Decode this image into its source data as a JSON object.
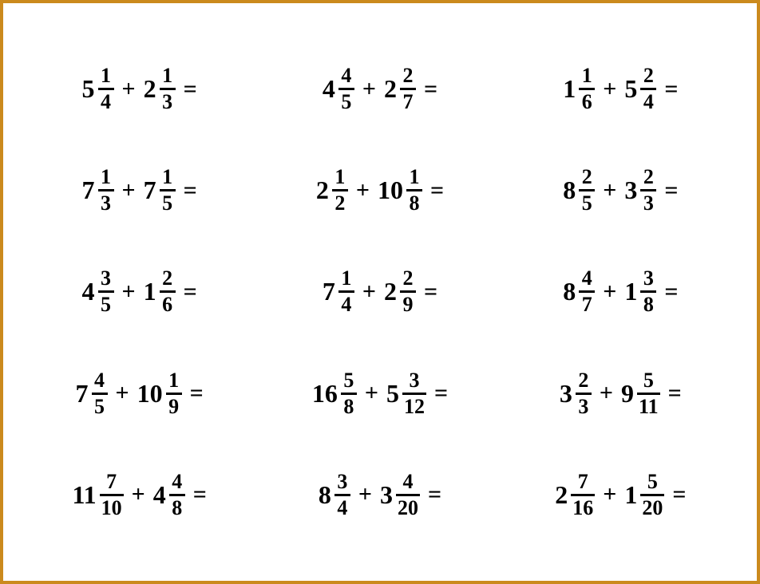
{
  "border_color": "#cb8a1d",
  "background_color": "#ffffff",
  "text_color": "#000000",
  "font_family": "Georgia, Times New Roman, serif",
  "whole_fontsize": 32,
  "frac_fontsize": 26,
  "op_fontsize": 30,
  "grid": {
    "rows": 5,
    "cols": 3
  },
  "operator": "+",
  "equals": "=",
  "problems": [
    {
      "a": {
        "whole": "5",
        "num": "1",
        "den": "4"
      },
      "b": {
        "whole": "2",
        "num": "1",
        "den": "3"
      }
    },
    {
      "a": {
        "whole": "4",
        "num": "4",
        "den": "5"
      },
      "b": {
        "whole": "2",
        "num": "2",
        "den": "7"
      }
    },
    {
      "a": {
        "whole": "1",
        "num": "1",
        "den": "6"
      },
      "b": {
        "whole": "5",
        "num": "2",
        "den": "4"
      }
    },
    {
      "a": {
        "whole": "7",
        "num": "1",
        "den": "3"
      },
      "b": {
        "whole": "7",
        "num": "1",
        "den": "5"
      }
    },
    {
      "a": {
        "whole": "2",
        "num": "1",
        "den": "2"
      },
      "b": {
        "whole": "10",
        "num": "1",
        "den": "8"
      }
    },
    {
      "a": {
        "whole": "8",
        "num": "2",
        "den": "5"
      },
      "b": {
        "whole": "3",
        "num": "2",
        "den": "3"
      }
    },
    {
      "a": {
        "whole": "4",
        "num": "3",
        "den": "5"
      },
      "b": {
        "whole": "1",
        "num": "2",
        "den": "6"
      }
    },
    {
      "a": {
        "whole": "7",
        "num": "1",
        "den": "4"
      },
      "b": {
        "whole": "2",
        "num": "2",
        "den": "9"
      }
    },
    {
      "a": {
        "whole": "8",
        "num": "4",
        "den": "7"
      },
      "b": {
        "whole": "1",
        "num": "3",
        "den": "8"
      }
    },
    {
      "a": {
        "whole": "7",
        "num": "4",
        "den": "5"
      },
      "b": {
        "whole": "10",
        "num": "1",
        "den": "9"
      }
    },
    {
      "a": {
        "whole": "16",
        "num": "5",
        "den": "8"
      },
      "b": {
        "whole": "5",
        "num": "3",
        "den": "12"
      }
    },
    {
      "a": {
        "whole": "3",
        "num": "2",
        "den": "3"
      },
      "b": {
        "whole": "9",
        "num": "5",
        "den": "11"
      }
    },
    {
      "a": {
        "whole": "11",
        "num": "7",
        "den": "10"
      },
      "b": {
        "whole": "4",
        "num": "4",
        "den": "8"
      }
    },
    {
      "a": {
        "whole": "8",
        "num": "3",
        "den": "4"
      },
      "b": {
        "whole": "3",
        "num": "4",
        "den": "20"
      }
    },
    {
      "a": {
        "whole": "2",
        "num": "7",
        "den": "16"
      },
      "b": {
        "whole": "1",
        "num": "5",
        "den": "20"
      }
    }
  ]
}
